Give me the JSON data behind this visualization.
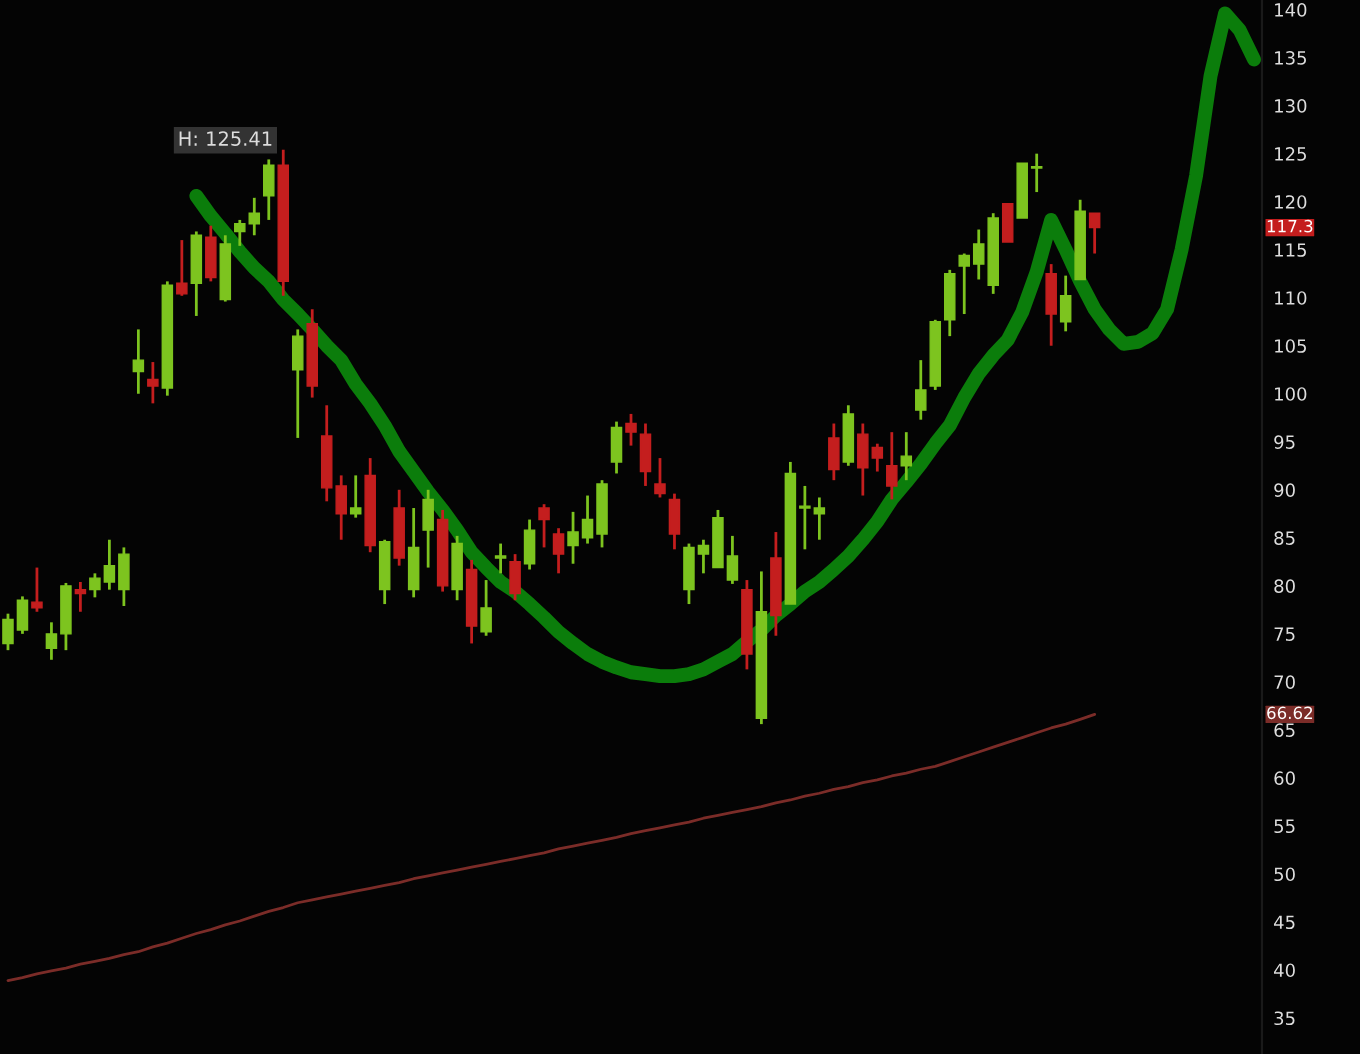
{
  "chart_data": {
    "type": "candlestick",
    "categories": [
      null,
      null,
      null,
      null,
      null,
      null,
      null,
      null,
      null,
      null,
      null,
      null,
      null,
      null,
      null,
      null,
      null,
      null,
      null,
      null,
      null,
      null,
      null,
      null,
      null,
      null,
      null,
      null,
      null,
      null,
      null,
      null,
      null,
      null,
      null,
      null,
      null,
      null,
      null,
      null,
      null,
      null,
      null,
      null,
      null,
      null,
      null,
      null,
      null,
      null,
      null,
      null,
      null,
      null,
      null,
      null,
      null,
      null,
      null,
      null,
      null,
      null,
      null,
      null,
      null,
      null,
      null,
      null,
      null,
      null,
      null,
      null,
      null,
      null,
      null,
      null,
      null,
      null,
      null,
      null,
      null,
      null,
      null,
      null,
      null,
      null,
      null
    ],
    "ohlc": [
      [
        74.0,
        77.1,
        73.3,
        76.5
      ],
      [
        75.4,
        78.9,
        75.0,
        78.5
      ],
      [
        78.3,
        81.9,
        77.3,
        77.7
      ],
      [
        73.5,
        76.2,
        72.3,
        75.0
      ],
      [
        75.0,
        80.3,
        73.3,
        80.0
      ],
      [
        79.6,
        80.4,
        77.3,
        79.2
      ],
      [
        79.6,
        81.3,
        78.8,
        80.8
      ],
      [
        80.4,
        84.8,
        79.6,
        82.1
      ],
      [
        79.6,
        84.0,
        77.9,
        83.3
      ],
      [
        102.3,
        106.7,
        100.0,
        103.5
      ],
      [
        101.5,
        103.3,
        99.0,
        100.8
      ],
      [
        100.6,
        111.7,
        99.8,
        111.3
      ],
      [
        111.5,
        116.0,
        110.2,
        110.4
      ],
      [
        111.5,
        116.9,
        108.1,
        116.5
      ],
      [
        116.3,
        117.5,
        111.7,
        112.1
      ],
      [
        109.8,
        116.5,
        109.6,
        115.6
      ],
      [
        116.9,
        118.1,
        115.4,
        117.7
      ],
      [
        117.7,
        120.4,
        116.5,
        118.8
      ],
      [
        120.6,
        124.4,
        118.1,
        123.8
      ],
      [
        123.8,
        125.41,
        110.2,
        111.7
      ],
      [
        102.5,
        106.7,
        95.4,
        106.0
      ],
      [
        107.3,
        108.8,
        99.6,
        100.8
      ],
      [
        95.6,
        98.8,
        88.8,
        90.2
      ],
      [
        90.4,
        91.5,
        84.8,
        87.5
      ],
      [
        87.5,
        91.5,
        87.1,
        88.1
      ],
      [
        91.5,
        93.3,
        83.5,
        84.2
      ],
      [
        79.6,
        84.8,
        78.1,
        84.6
      ],
      [
        88.1,
        90.0,
        82.1,
        82.9
      ],
      [
        79.6,
        88.1,
        78.8,
        84.0
      ],
      [
        85.8,
        90.0,
        81.9,
        89.0
      ],
      [
        86.9,
        87.9,
        79.4,
        80.0
      ],
      [
        79.6,
        85.2,
        78.5,
        84.4
      ],
      [
        81.7,
        82.7,
        74.0,
        75.8
      ],
      [
        75.2,
        80.6,
        74.8,
        77.7
      ],
      [
        82.9,
        84.4,
        81.3,
        83.1
      ],
      [
        82.5,
        83.3,
        78.5,
        79.2
      ],
      [
        82.3,
        86.9,
        81.7,
        85.8
      ],
      [
        88.1,
        88.5,
        84.0,
        86.9
      ],
      [
        85.4,
        86.0,
        81.3,
        83.3
      ],
      [
        84.2,
        87.7,
        82.3,
        85.6
      ],
      [
        85.0,
        89.4,
        84.4,
        86.9
      ],
      [
        85.4,
        91.0,
        84.0,
        90.6
      ],
      [
        92.9,
        97.1,
        91.7,
        96.5
      ],
      [
        96.9,
        97.9,
        94.6,
        96.0
      ],
      [
        95.8,
        96.9,
        90.4,
        91.9
      ],
      [
        90.6,
        93.3,
        89.2,
        89.6
      ],
      [
        89.0,
        89.6,
        83.8,
        85.4
      ],
      [
        79.6,
        84.4,
        78.1,
        84.0
      ],
      [
        83.3,
        84.8,
        81.3,
        84.2
      ],
      [
        81.9,
        87.9,
        81.9,
        87.1
      ],
      [
        80.6,
        85.2,
        80.2,
        83.1
      ],
      [
        79.6,
        80.6,
        71.3,
        72.9
      ],
      [
        66.2,
        81.5,
        65.6,
        77.3
      ],
      [
        82.9,
        85.6,
        74.8,
        76.9
      ],
      [
        78.1,
        92.9,
        78.1,
        91.7
      ],
      [
        88.1,
        90.4,
        83.8,
        88.3
      ],
      [
        87.5,
        89.2,
        84.8,
        88.1
      ],
      [
        95.4,
        96.9,
        91.0,
        92.1
      ],
      [
        92.9,
        98.8,
        92.5,
        97.9
      ],
      [
        95.8,
        96.9,
        89.4,
        92.3
      ],
      [
        94.4,
        94.8,
        91.9,
        93.3
      ],
      [
        92.5,
        96.0,
        89.0,
        90.4
      ],
      [
        92.5,
        96.0,
        91.0,
        93.5
      ],
      [
        98.3,
        103.5,
        97.3,
        100.4
      ],
      [
        100.8,
        107.7,
        100.4,
        107.5
      ],
      [
        107.7,
        112.9,
        106.0,
        112.5
      ],
      [
        113.3,
        114.6,
        108.3,
        114.4
      ],
      [
        113.5,
        117.1,
        111.9,
        115.6
      ],
      [
        111.3,
        118.8,
        110.4,
        118.3
      ],
      [
        119.8,
        119.8,
        115.8,
        115.8
      ],
      [
        118.3,
        124.0,
        118.3,
        124.0
      ],
      [
        123.5,
        125.0,
        121.0,
        123.6
      ],
      [
        112.5,
        113.5,
        105.0,
        108.3
      ],
      [
        107.5,
        112.3,
        106.5,
        110.2
      ],
      [
        111.9,
        120.2,
        111.9,
        119.0
      ],
      [
        118.8,
        118.8,
        114.6,
        117.3
      ],
      null,
      null,
      null,
      null,
      null,
      null,
      null,
      null,
      null,
      null,
      null
    ],
    "colors": [
      "#7dc41f",
      "#7dc41f",
      "#c41e1e",
      "#7dc41f",
      "#7dc41f",
      "#c41e1e",
      "#7dc41f",
      "#7dc41f",
      "#7dc41f",
      "#7dc41f",
      "#c41e1e",
      "#7dc41f",
      "#c41e1e",
      "#7dc41f",
      "#c41e1e",
      "#7dc41f",
      "#7dc41f",
      "#7dc41f",
      "#7dc41f",
      "#c41e1e",
      "#7dc41f",
      "#c41e1e",
      "#c41e1e",
      "#c41e1e",
      "#7dc41f",
      "#c41e1e",
      "#7dc41f",
      "#c41e1e",
      "#7dc41f",
      "#7dc41f",
      "#c41e1e",
      "#7dc41f",
      "#c41e1e",
      "#7dc41f",
      "#7dc41f",
      "#c41e1e",
      "#7dc41f",
      "#c41e1e",
      "#c41e1e",
      "#7dc41f",
      "#7dc41f",
      "#7dc41f",
      "#7dc41f",
      "#c41e1e",
      "#c41e1e",
      "#c41e1e",
      "#c41e1e",
      "#7dc41f",
      "#7dc41f",
      "#7dc41f",
      "#7dc41f",
      "#c41e1e",
      "#7dc41f",
      "#c41e1e",
      "#7dc41f",
      "#7dc41f",
      "#7dc41f",
      "#c41e1e",
      "#7dc41f",
      "#c41e1e",
      "#c41e1e",
      "#c41e1e",
      "#7dc41f",
      "#7dc41f",
      "#7dc41f",
      "#7dc41f",
      "#7dc41f",
      "#7dc41f",
      "#7dc41f",
      "#c41e1e",
      "#7dc41f",
      "#7dc41f",
      "#c41e1e",
      "#7dc41f",
      "#7dc41f",
      "#c41e1e",
      null,
      null,
      null,
      null,
      null,
      null,
      null,
      null,
      null,
      null,
      null
    ],
    "series": [
      {
        "type": "line",
        "color": "#7b2c28",
        "values": [
          38.9,
          39.2,
          39.6,
          39.9,
          40.2,
          40.6,
          40.9,
          41.2,
          41.6,
          41.9,
          42.4,
          42.8,
          43.3,
          43.8,
          44.2,
          44.7,
          45.1,
          45.6,
          46.1,
          46.5,
          47.0,
          47.3,
          47.6,
          47.9,
          48.2,
          48.5,
          48.8,
          49.1,
          49.5,
          49.8,
          50.1,
          50.4,
          50.7,
          51.0,
          51.3,
          51.6,
          51.9,
          52.2,
          52.6,
          52.9,
          53.2,
          53.5,
          53.8,
          54.2,
          54.5,
          54.8,
          55.1,
          55.4,
          55.8,
          56.1,
          56.4,
          56.7,
          57.0,
          57.4,
          57.7,
          58.1,
          58.4,
          58.8,
          59.1,
          59.5,
          59.8,
          60.2,
          60.5,
          60.9,
          61.2,
          61.7,
          62.2,
          62.7,
          63.2,
          63.7,
          64.2,
          64.7,
          65.2,
          65.6,
          66.1,
          66.62,
          null,
          null,
          null,
          null,
          null,
          null,
          null,
          null,
          null,
          null,
          null
        ]
      },
      {
        "type": "line",
        "color": "#0b7d0b",
        "values": [
          null,
          null,
          null,
          null,
          null,
          null,
          null,
          null,
          null,
          null,
          null,
          null,
          null,
          120.6,
          118.5,
          116.7,
          114.8,
          113.1,
          111.7,
          109.8,
          108.3,
          106.7,
          105.0,
          103.5,
          101.0,
          99.0,
          96.7,
          94.0,
          91.9,
          89.8,
          87.9,
          85.8,
          83.5,
          81.9,
          80.4,
          79.4,
          78.1,
          76.7,
          75.2,
          74.0,
          72.9,
          72.1,
          71.5,
          71.0,
          70.8,
          70.6,
          70.6,
          70.8,
          71.3,
          72.1,
          72.9,
          74.2,
          75.4,
          76.9,
          78.1,
          79.4,
          80.4,
          81.7,
          83.1,
          84.8,
          86.7,
          89.0,
          90.8,
          92.7,
          94.8,
          96.7,
          99.6,
          102.1,
          104.0,
          105.6,
          108.5,
          112.7,
          118.1,
          115.0,
          111.7,
          108.8,
          106.7,
          105.2,
          105.4,
          106.3,
          108.8,
          115.0,
          122.7,
          133.1,
          139.6,
          137.9,
          134.8
        ]
      }
    ],
    "annotations": [
      "H: 125.41",
      "117.3",
      "66.62"
    ],
    "ylim": [
      31.25,
      141
    ],
    "yticks": [
      35,
      40,
      45,
      50,
      55,
      60,
      65,
      70,
      75,
      80,
      85,
      90,
      95,
      100,
      105,
      110,
      115,
      120,
      125,
      130,
      135,
      140
    ],
    "tick_labels": "y",
    "grid": false,
    "legend": false
  }
}
